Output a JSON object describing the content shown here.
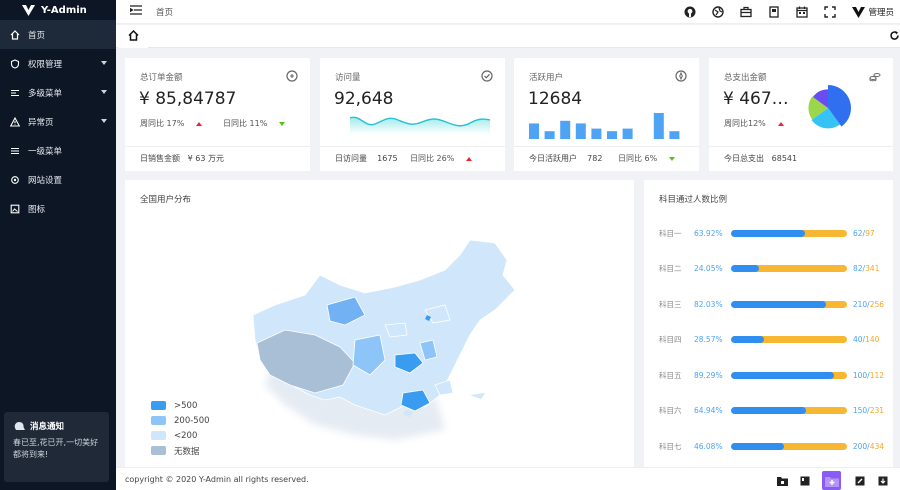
{
  "brand": {
    "name": "Y-Admin"
  },
  "sidebar": {
    "items": [
      {
        "label": "首页",
        "icon": "home-icon"
      },
      {
        "label": "权限管理",
        "icon": "shield-icon"
      },
      {
        "label": "多级菜单",
        "icon": "list-icon"
      },
      {
        "label": "异常页",
        "icon": "warning-icon"
      },
      {
        "label": "一级菜单",
        "icon": "menu-icon"
      },
      {
        "label": "网站设置",
        "icon": "gear-icon"
      },
      {
        "label": "图标",
        "icon": "image-icon"
      }
    ],
    "notice": {
      "title": "消息通知",
      "body": "春已至,花已开,一切美好都将到来!"
    }
  },
  "header": {
    "breadcrumb": "首页",
    "user": "管理员"
  },
  "cards": {
    "orders": {
      "title": "总订单金额",
      "value": "¥ 85,84787",
      "week_label": "周同比 17%",
      "day_label": "日同比 11%",
      "foot_label": "日销售金额",
      "foot_value": "¥ 63 万元"
    },
    "visits": {
      "title": "访问量",
      "value": "92,648",
      "foot_label": "日访问量",
      "foot_value": "1675",
      "day_label": "日同比 26%"
    },
    "active": {
      "title": "活跃用户",
      "value": "12684",
      "foot_label": "今日活跃用户",
      "foot_value": "782",
      "day_label": "日同比 6%"
    },
    "spend": {
      "title": "总支出金额",
      "value": "¥ 467…",
      "week_label": "周同比12%",
      "foot_label": "今日总支出",
      "foot_value": "68541"
    }
  },
  "map": {
    "title": "全国用户分布",
    "legend": [
      {
        "label": ">500",
        "color": "#3a9cf0"
      },
      {
        "label": "200-500",
        "color": "#8ec5f8"
      },
      {
        "label": "<200",
        "color": "#cfe6fb"
      },
      {
        "label": "无数据",
        "color": "#a9bfd6"
      }
    ]
  },
  "ratio": {
    "title": "科目通过人数比例",
    "rows": [
      {
        "name": "科目一",
        "pct": "63.92%",
        "frac": 0.6392,
        "passed": "62",
        "total": "97"
      },
      {
        "name": "科目二",
        "pct": "24.05%",
        "frac": 0.2405,
        "passed": "82",
        "total": "341"
      },
      {
        "name": "科目三",
        "pct": "82.03%",
        "frac": 0.8203,
        "passed": "210",
        "total": "256"
      },
      {
        "name": "科目四",
        "pct": "28.57%",
        "frac": 0.2857,
        "passed": "40",
        "total": "140"
      },
      {
        "name": "科目五",
        "pct": "89.29%",
        "frac": 0.8929,
        "passed": "100",
        "total": "112"
      },
      {
        "name": "科目六",
        "pct": "64.94%",
        "frac": 0.6494,
        "passed": "150",
        "total": "231"
      },
      {
        "name": "科目七",
        "pct": "46.08%",
        "frac": 0.4608,
        "passed": "200",
        "total": "434"
      }
    ]
  },
  "chart_data": [
    {
      "type": "bar",
      "title": "",
      "values": [
        6,
        3,
        7,
        6,
        4,
        3,
        4,
        0,
        10,
        3
      ]
    },
    {
      "type": "pie",
      "title": "",
      "values": [
        40,
        25,
        20,
        15
      ],
      "colors": [
        "#2f6ff0",
        "#35c2f5",
        "#9bd64b",
        "#6a4cf0"
      ]
    }
  ],
  "footer": {
    "copyright": "copyright © 2020 Y-Admin all rights reserved."
  },
  "colors": {
    "sidebar": "#0c1624",
    "accent": "#2f8ef0",
    "warn": "#f7b733"
  }
}
